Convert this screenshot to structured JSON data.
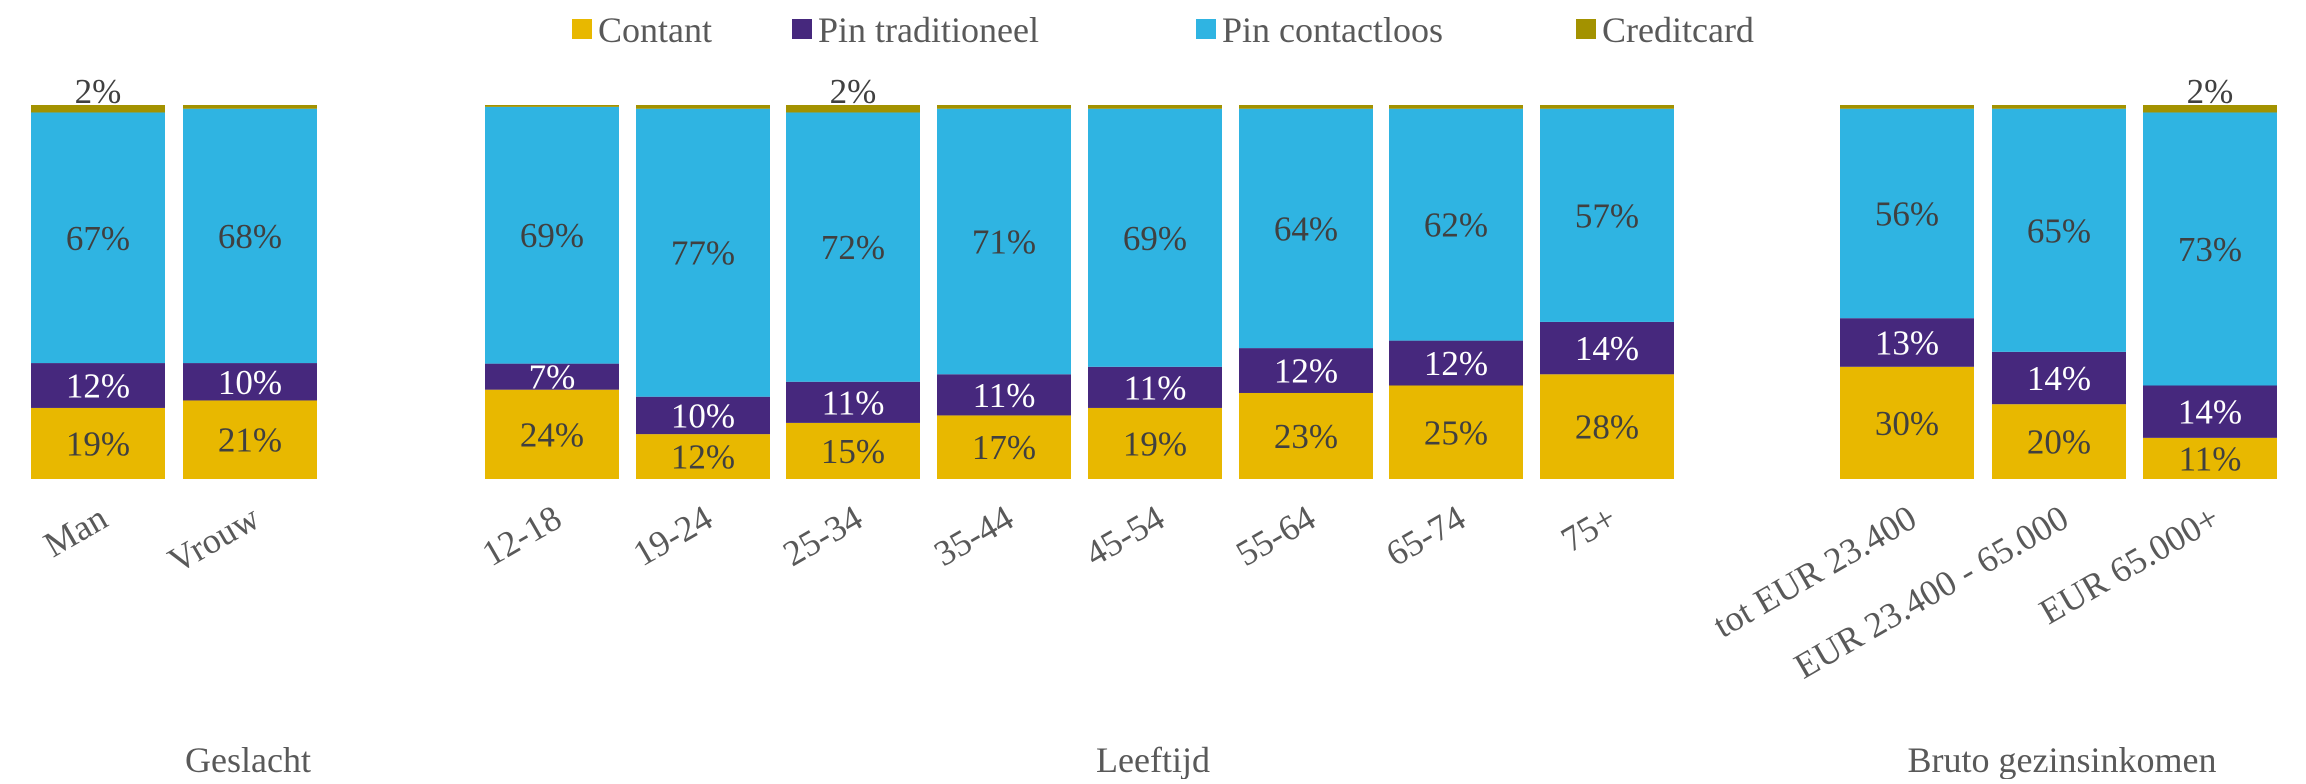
{
  "chart_data": {
    "type": "bar",
    "stacked": true,
    "normalized": true,
    "title": "",
    "xlabel": "",
    "ylabel": "",
    "ylim": [
      0,
      100
    ],
    "grid": false,
    "legend_position": "top",
    "groups": [
      {
        "title": "Geslacht",
        "categories": [
          "Man",
          "Vrouw"
        ]
      },
      {
        "title": "Leeftijd",
        "categories": [
          "12-18",
          "19-24",
          "25-34",
          "35-44",
          "45-54",
          "55-64",
          "65-74",
          "75+"
        ]
      },
      {
        "title": "Bruto gezinsinkomen",
        "categories": [
          "tot EUR 23.400",
          "EUR 23.400 - 65.000",
          "EUR 65.000+"
        ]
      }
    ],
    "categories": [
      "Man",
      "Vrouw",
      "12-18",
      "19-24",
      "25-34",
      "35-44",
      "45-54",
      "55-64",
      "65-74",
      "75+",
      "tot EUR 23.400",
      "EUR 23.400 - 65.000",
      "EUR 65.000+"
    ],
    "series": [
      {
        "name": "Contant",
        "color": "#E8B800",
        "label_color": "#404040",
        "values": [
          19,
          21,
          24,
          12,
          15,
          17,
          19,
          23,
          25,
          28,
          30,
          20,
          11
        ]
      },
      {
        "name": "Pin traditioneel",
        "color": "#46287D",
        "label_color": "#FFFFFF",
        "values": [
          12,
          10,
          7,
          10,
          11,
          11,
          11,
          12,
          12,
          14,
          13,
          14,
          14
        ]
      },
      {
        "name": "Pin contactloos",
        "color": "#2FB4E2",
        "label_color": "#404040",
        "values": [
          67,
          68,
          69,
          77,
          72,
          71,
          69,
          64,
          62,
          57,
          56,
          65,
          73
        ]
      },
      {
        "name": "Creditcard",
        "color": "#A39200",
        "label_color": "#404040",
        "values": [
          2,
          1,
          0.5,
          1,
          2,
          1,
          1,
          1,
          1,
          1,
          1,
          1,
          2
        ],
        "labels_shown": [
          true,
          false,
          false,
          false,
          true,
          false,
          false,
          false,
          false,
          false,
          false,
          false,
          true
        ]
      }
    ],
    "value_format": "{v}%"
  }
}
